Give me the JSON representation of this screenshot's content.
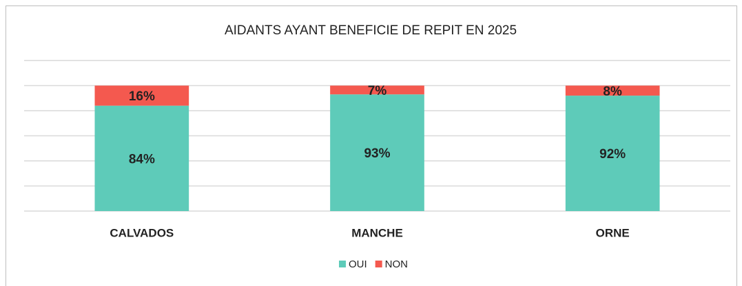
{
  "chart_data": {
    "type": "stacked_bar",
    "title": "AIDANTS AYANT BENEFICIE DE REPIT EN 2025",
    "categories": [
      "CALVADOS",
      "MANCHE",
      "ORNE"
    ],
    "series": [
      {
        "name": "OUI",
        "color": "#5ecbb9",
        "values": [
          84,
          93,
          92
        ],
        "value_labels": [
          "84%",
          "93%",
          "92%"
        ]
      },
      {
        "name": "NON",
        "color": "#f4594f",
        "values": [
          16,
          7,
          8
        ],
        "value_labels": [
          "16%",
          "7%",
          "8%"
        ]
      }
    ],
    "ylim": [
      0,
      120
    ],
    "yticks": [
      0,
      20,
      40,
      60,
      80,
      100,
      120
    ],
    "grid": true,
    "legend": "bottom"
  }
}
